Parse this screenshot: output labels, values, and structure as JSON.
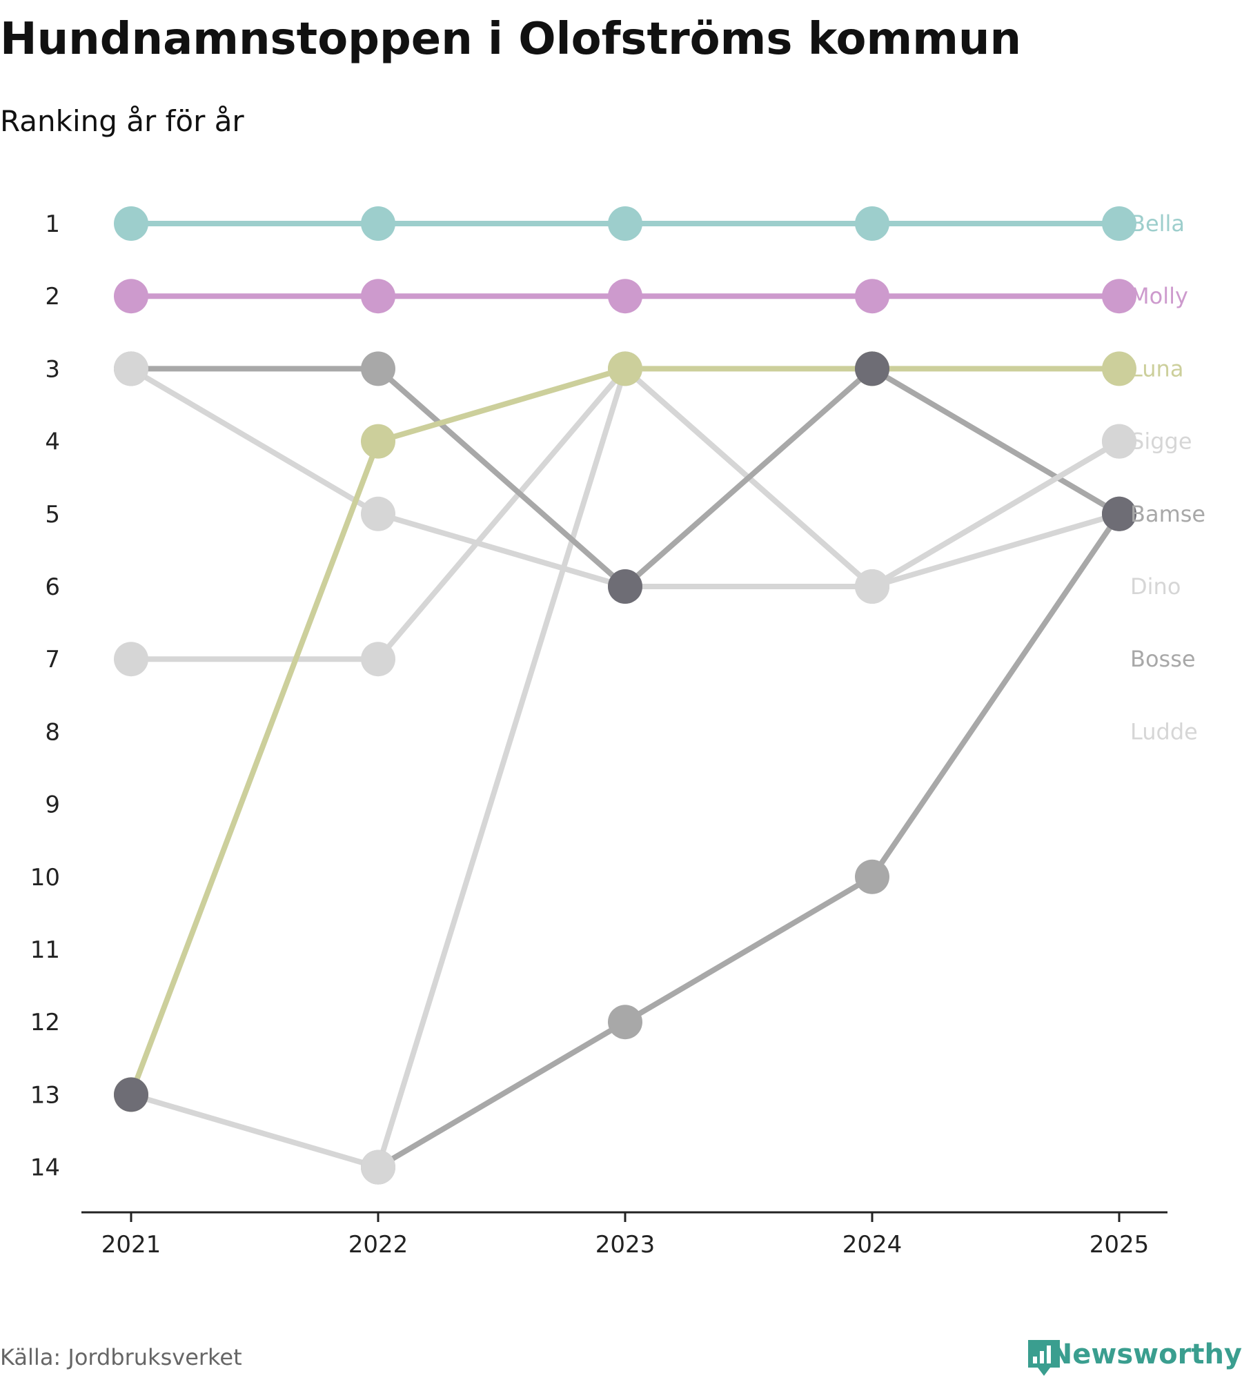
{
  "header": {
    "title": "Hundnamnstoppen i Olofströms kommun",
    "subtitle": "Ranking år för år"
  },
  "footer": {
    "source": "Källa: Jordbruksverket",
    "brand": "Newsworthy",
    "brand_color": "#3a9e8f",
    "brand_icon": "bar-chart-speech-bubble-icon"
  },
  "chart_data": {
    "type": "line",
    "title": "Hundnamnstoppen i Olofströms kommun",
    "subtitle": "Ranking år för år",
    "xlabel": "",
    "ylabel": "",
    "categories": [
      "2021",
      "2022",
      "2023",
      "2024",
      "2025"
    ],
    "y_ticks": [
      1,
      2,
      3,
      4,
      5,
      6,
      7,
      8,
      9,
      10,
      11,
      12,
      13,
      14
    ],
    "ylim": [
      1,
      14
    ],
    "y_inverted": true,
    "series": [
      {
        "name": "Bella",
        "color": "#9dcecc",
        "values": [
          1,
          1,
          1,
          1,
          1
        ]
      },
      {
        "name": "Molly",
        "color": "#cd9acd",
        "values": [
          2,
          2,
          2,
          2,
          2
        ]
      },
      {
        "name": "Luna",
        "color": "#cccf9b",
        "values": [
          13,
          4,
          3,
          3,
          3
        ]
      },
      {
        "name": "Sigge",
        "color": "#d6d6d6",
        "values": [
          3,
          5,
          6,
          6,
          4
        ]
      },
      {
        "name": "Bamse",
        "color": "#a8a8a8",
        "values": [
          3,
          3,
          6,
          3,
          5
        ]
      },
      {
        "name": "Dino",
        "color": "#d6d6d6",
        "values": [
          13,
          14,
          3,
          6,
          5
        ]
      },
      {
        "name": "Bosse",
        "color": "#a8a8a8",
        "values": [
          null,
          14,
          12,
          10,
          5
        ]
      },
      {
        "name": "Ludde",
        "color": "#d6d6d6",
        "values": [
          7,
          7,
          3,
          6,
          4
        ]
      }
    ],
    "highlight_dots": [
      {
        "category": "2021",
        "value": 13,
        "color": "#6e6d75"
      },
      {
        "category": "2023",
        "value": 6,
        "color": "#6e6d75"
      },
      {
        "category": "2024",
        "value": 3,
        "color": "#6e6d75"
      },
      {
        "category": "2025",
        "value": 5,
        "color": "#6e6d75"
      }
    ]
  }
}
